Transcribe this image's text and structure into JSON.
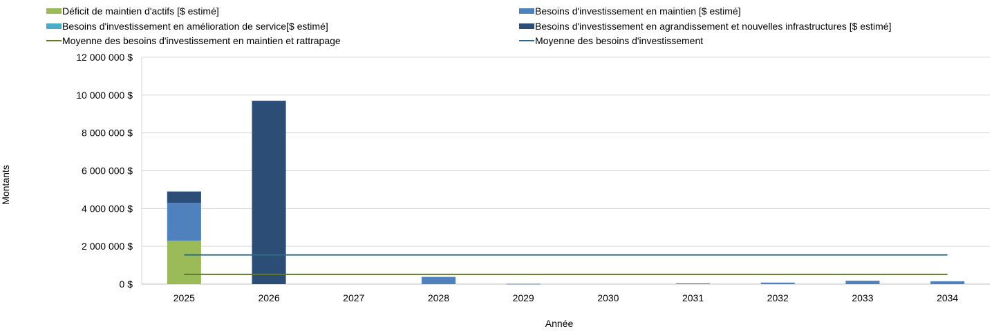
{
  "chart_data": {
    "type": "bar",
    "stacked": true,
    "xlabel": "Année",
    "ylabel": "Montants",
    "ylim": [
      0,
      12000000
    ],
    "y_ticks": [
      "0 $",
      "2 000 000 $",
      "4 000 000 $",
      "6 000 000 $",
      "8 000 000 $",
      "10 000 000 $",
      "12 000 000 $"
    ],
    "y_tick_values": [
      0,
      2000000,
      4000000,
      6000000,
      8000000,
      10000000,
      12000000
    ],
    "categories": [
      "2025",
      "2026",
      "2027",
      "2028",
      "2029",
      "2030",
      "2031",
      "2032",
      "2033",
      "2034"
    ],
    "grid": true,
    "legend_position": "top",
    "series": [
      {
        "name": "Déficit de maintien d'actifs [$ estimé]",
        "kind": "bar",
        "color": "#9bbb59",
        "values": [
          2300000,
          0,
          0,
          0,
          0,
          0,
          0,
          0,
          0,
          0
        ]
      },
      {
        "name": "Besoins d'investissement en maintien [$ estimé]",
        "kind": "bar",
        "color": "#4f81bd",
        "values": [
          2000000,
          0,
          0,
          380000,
          20000,
          0,
          40000,
          80000,
          180000,
          150000
        ]
      },
      {
        "name": "Besoins d'investissement en amélioration de service[$ estimé]",
        "kind": "bar",
        "color": "#4bacc6",
        "values": [
          0,
          0,
          0,
          0,
          0,
          0,
          0,
          0,
          0,
          0
        ]
      },
      {
        "name": "Besoins d'investissement en agrandissement et nouvelles infrastructures [$ estimé]",
        "kind": "bar",
        "color": "#2c4d75",
        "values": [
          600000,
          9700000,
          0,
          0,
          0,
          0,
          0,
          0,
          0,
          0
        ]
      },
      {
        "name": "Moyenne des besoins d'investissement en maintien et rattrapage",
        "kind": "line",
        "color": "#5e7a2a",
        "values": [
          515000,
          515000,
          515000,
          515000,
          515000,
          515000,
          515000,
          515000,
          515000,
          515000
        ]
      },
      {
        "name": "Moyenne des besoins d'investissement",
        "kind": "line",
        "color": "#2e6b84",
        "values": [
          1545000,
          1545000,
          1545000,
          1545000,
          1545000,
          1545000,
          1545000,
          1545000,
          1545000,
          1545000
        ]
      }
    ]
  }
}
